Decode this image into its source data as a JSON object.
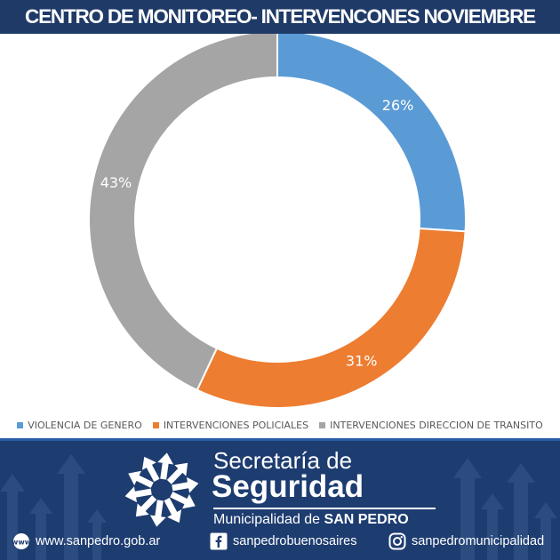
{
  "header": {
    "title": "CENTRO DE MONITOREO- INTERVENCONES NOVIEMBRE"
  },
  "colors": {
    "header_bg": "#1f3a67",
    "footer_bg": "#1d3c70",
    "violencia": "#5b9bd5",
    "policiales": "#ed7d31",
    "transito": "#a5a5a5"
  },
  "chart_data": {
    "type": "pie",
    "donut": true,
    "title": "CENTRO DE MONITOREO- INTERVENCONES NOVIEMBRE",
    "legend_position": "bottom",
    "slices": [
      {
        "name": "VIOLENCIA DE GENERO",
        "value": 26,
        "label": "26%",
        "color": "#5b9bd5"
      },
      {
        "name": "INTERVENCIONES POLICIALES",
        "value": 31,
        "label": "31%",
        "color": "#ed7d31"
      },
      {
        "name": "INTERVENCIONES DIRECCION DE TRANSITO",
        "value": 43,
        "label": "43%",
        "color": "#a5a5a5"
      }
    ]
  },
  "footer": {
    "brand_line1": "Secretaría de",
    "brand_line2": "Seguridad",
    "brand_line3_prefix": "Municipalidad de",
    "brand_line3_bold": "SAN PEDRO",
    "website": "www.sanpedro.gob.ar",
    "facebook": "sanpedrobuenosaires",
    "instagram": "sanpedromunicipalidad",
    "icons": {
      "logo": "radial-arrows-logo-icon",
      "web": "globe-icon",
      "facebook": "facebook-icon",
      "instagram": "instagram-icon"
    }
  }
}
